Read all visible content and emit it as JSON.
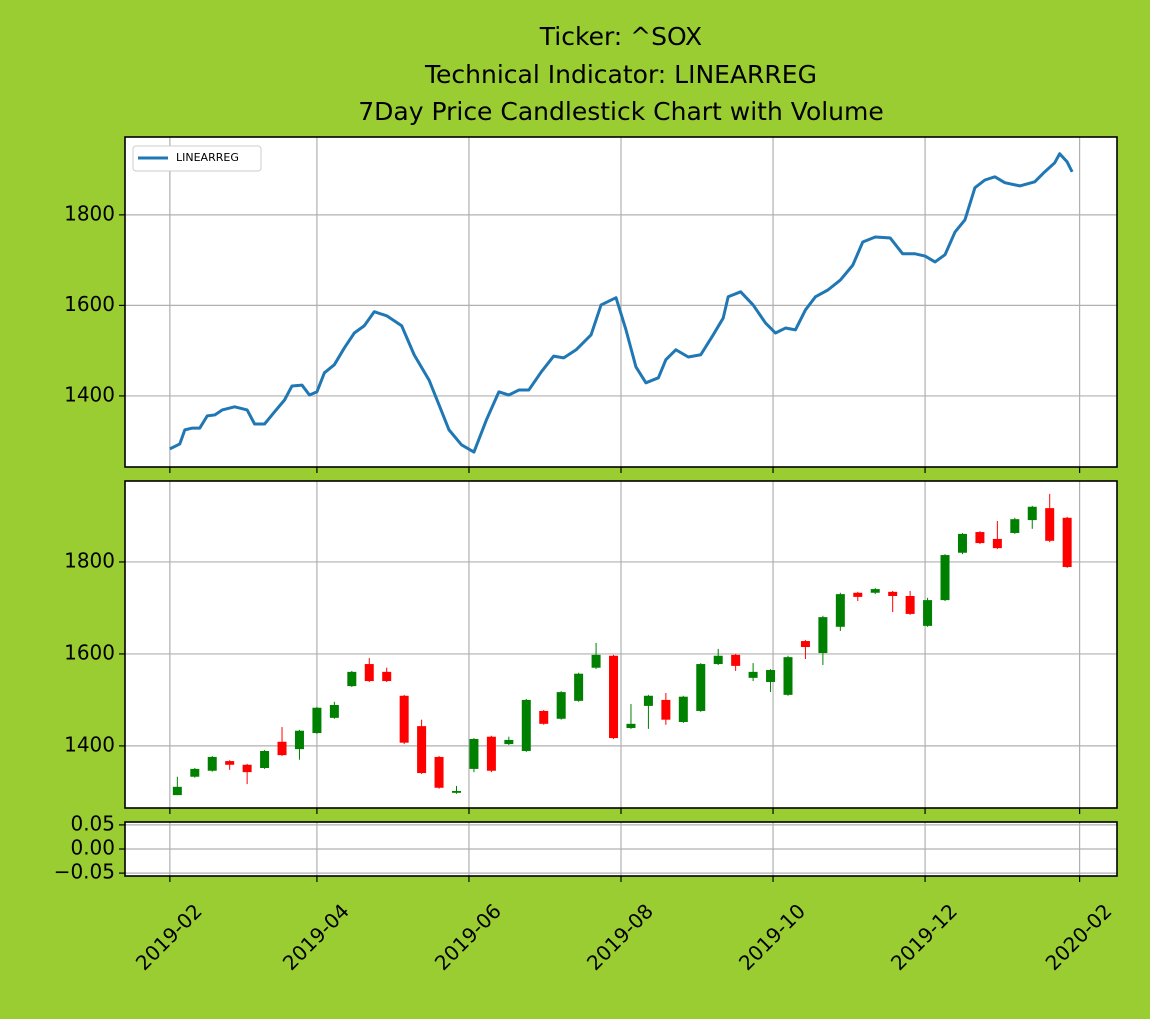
{
  "chart_data": [
    {
      "type": "line",
      "title": [
        "Ticker: ^SOX",
        "Technical Indicator: LINEARREG",
        "7Day Price Candlestick Chart with Volume"
      ],
      "x": [
        "2019-02-01",
        "2019-02-05",
        "2019-02-07",
        "2019-02-10",
        "2019-02-13",
        "2019-02-16",
        "2019-02-19",
        "2019-02-22",
        "2019-02-27",
        "2019-03-04",
        "2019-03-07",
        "2019-03-11",
        "2019-03-15",
        "2019-03-19",
        "2019-03-22",
        "2019-03-26",
        "2019-03-29",
        "2019-04-01",
        "2019-04-04",
        "2019-04-08",
        "2019-04-12",
        "2019-04-16",
        "2019-04-20",
        "2019-04-24",
        "2019-04-29",
        "2019-05-05",
        "2019-05-10",
        "2019-05-16",
        "2019-05-20",
        "2019-05-24",
        "2019-05-29",
        "2019-06-03",
        "2019-06-08",
        "2019-06-13",
        "2019-06-17",
        "2019-06-21",
        "2019-06-25",
        "2019-06-30",
        "2019-07-05",
        "2019-07-09",
        "2019-07-14",
        "2019-07-20",
        "2019-07-24",
        "2019-07-30",
        "2019-08-03",
        "2019-08-07",
        "2019-08-11",
        "2019-08-16",
        "2019-08-19",
        "2019-08-23",
        "2019-08-28",
        "2019-09-02",
        "2019-09-07",
        "2019-09-11",
        "2019-09-13",
        "2019-09-18",
        "2019-09-23",
        "2019-09-28",
        "2019-10-02",
        "2019-10-06",
        "2019-10-10",
        "2019-10-14",
        "2019-10-18",
        "2019-10-23",
        "2019-10-28",
        "2019-11-02",
        "2019-11-06",
        "2019-11-11",
        "2019-11-17",
        "2019-11-22",
        "2019-11-27",
        "2019-12-01",
        "2019-12-05",
        "2019-12-09",
        "2019-12-13",
        "2019-12-17",
        "2019-12-21",
        "2019-12-25",
        "2019-12-29",
        "2020-01-02",
        "2020-01-08",
        "2020-01-14",
        "2020-01-18",
        "2020-01-22",
        "2020-01-24",
        "2020-01-27",
        "2020-01-29"
      ],
      "series": [
        {
          "name": "LINEARREG",
          "color": "#1f77b4",
          "values": [
            1283,
            1294,
            1325,
            1329,
            1329,
            1356,
            1358,
            1369,
            1376,
            1369,
            1338,
            1338,
            1365,
            1391,
            1422,
            1424,
            1402,
            1409,
            1451,
            1469,
            1506,
            1539,
            1555,
            1586,
            1577,
            1555,
            1491,
            1435,
            1380,
            1325,
            1292,
            1276,
            1347,
            1409,
            1402,
            1413,
            1413,
            1453,
            1488,
            1484,
            1502,
            1535,
            1601,
            1617,
            1546,
            1464,
            1429,
            1440,
            1480,
            1502,
            1486,
            1491,
            1535,
            1572,
            1619,
            1630,
            1601,
            1561,
            1539,
            1550,
            1546,
            1590,
            1619,
            1634,
            1656,
            1689,
            1740,
            1751,
            1749,
            1714,
            1714,
            1709,
            1696,
            1712,
            1762,
            1789,
            1860,
            1877,
            1884,
            1871,
            1864,
            1873,
            1895,
            1915,
            1935,
            1917,
            1895
          ]
        }
      ],
      "ylim": [
        1243,
        1972
      ],
      "yticks": [
        1400,
        1600,
        1800
      ],
      "grid": true,
      "legend": "upper left"
    },
    {
      "type": "candlestick",
      "x": [
        "2019-02-04",
        "2019-02-11",
        "2019-02-18",
        "2019-02-25",
        "2019-03-04",
        "2019-03-11",
        "2019-03-18",
        "2019-03-25",
        "2019-04-01",
        "2019-04-08",
        "2019-04-15",
        "2019-04-22",
        "2019-04-29",
        "2019-05-06",
        "2019-05-13",
        "2019-05-20",
        "2019-05-27",
        "2019-06-03",
        "2019-06-10",
        "2019-06-17",
        "2019-06-24",
        "2019-07-01",
        "2019-07-08",
        "2019-07-15",
        "2019-07-22",
        "2019-07-29",
        "2019-08-05",
        "2019-08-12",
        "2019-08-19",
        "2019-08-26",
        "2019-09-02",
        "2019-09-09",
        "2019-09-16",
        "2019-09-23",
        "2019-09-30",
        "2019-10-07",
        "2019-10-14",
        "2019-10-21",
        "2019-10-28",
        "2019-11-04",
        "2019-11-11",
        "2019-11-18",
        "2019-11-25",
        "2019-12-02",
        "2019-12-09",
        "2019-12-16",
        "2019-12-23",
        "2019-12-30",
        "2020-01-06",
        "2020-01-13",
        "2020-01-20",
        "2020-01-27"
      ],
      "open": [
        1293,
        1333,
        1346,
        1367,
        1359,
        1352,
        1409,
        1393,
        1428,
        1461,
        1530,
        1578,
        1561,
        1509,
        1443,
        1376,
        1298,
        1350,
        1420,
        1404,
        1389,
        1476,
        1459,
        1498,
        1570,
        1596,
        1439,
        1487,
        1500,
        1452,
        1476,
        1578,
        1598,
        1548,
        1539,
        1511,
        1628,
        1602,
        1659,
        1733,
        1733,
        1735,
        1726,
        1661,
        1717,
        1820,
        1865,
        1850,
        1863,
        1891,
        1917,
        1896
      ],
      "high": [
        1333,
        1352,
        1378,
        1369,
        1361,
        1391,
        1441,
        1435,
        1485,
        1496,
        1563,
        1591,
        1570,
        1511,
        1457,
        1378,
        1313,
        1417,
        1422,
        1420,
        1502,
        1478,
        1519,
        1559,
        1624,
        1598,
        1491,
        1511,
        1515,
        1509,
        1580,
        1611,
        1600,
        1580,
        1567,
        1596,
        1630,
        1683,
        1733,
        1735,
        1743,
        1737,
        1737,
        1722,
        1817,
        1863,
        1867,
        1889,
        1896,
        1922,
        1948,
        1898
      ],
      "low": [
        1293,
        1331,
        1344,
        1348,
        1317,
        1350,
        1378,
        1370,
        1426,
        1459,
        1528,
        1539,
        1539,
        1404,
        1339,
        1307,
        1296,
        1343,
        1343,
        1402,
        1387,
        1446,
        1457,
        1496,
        1567,
        1415,
        1437,
        1437,
        1446,
        1450,
        1474,
        1576,
        1563,
        1541,
        1517,
        1509,
        1589,
        1576,
        1650,
        1715,
        1730,
        1691,
        1685,
        1659,
        1715,
        1817,
        1839,
        1828,
        1861,
        1872,
        1843,
        1787
      ],
      "close": [
        1311,
        1350,
        1376,
        1359,
        1343,
        1389,
        1380,
        1433,
        1483,
        1489,
        1561,
        1541,
        1541,
        1407,
        1341,
        1309,
        1302,
        1415,
        1346,
        1413,
        1500,
        1448,
        1517,
        1557,
        1598,
        1417,
        1448,
        1509,
        1457,
        1507,
        1578,
        1596,
        1574,
        1561,
        1565,
        1593,
        1615,
        1680,
        1730,
        1724,
        1741,
        1726,
        1687,
        1717,
        1815,
        1861,
        1841,
        1830,
        1893,
        1920,
        1846,
        1789
      ],
      "up_color": "#008000",
      "down_color": "#ff0000",
      "ylim": [
        1265,
        1976
      ],
      "yticks": [
        1400,
        1600,
        1800
      ],
      "grid": true
    },
    {
      "type": "bar",
      "ylim": [
        -0.056,
        0.056
      ],
      "yticks": [
        {
          "value": -0.05,
          "label": "−0.05"
        },
        {
          "value": 0,
          "label": "0.00"
        },
        {
          "value": 0.05,
          "label": "0.05"
        }
      ],
      "xlim": [
        "2019-01-14",
        "2020-02-16"
      ],
      "xticks": [
        "2019-02",
        "2019-04",
        "2019-06",
        "2019-08",
        "2019-10",
        "2019-12",
        "2020-02"
      ],
      "grid": true
    }
  ]
}
